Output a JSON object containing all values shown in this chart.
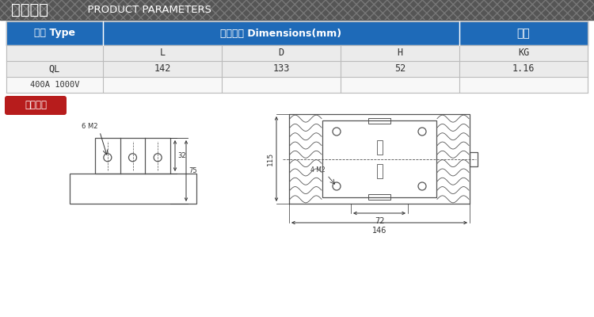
{
  "title_zh": "产品参数",
  "title_en": "  PRODUCT PARAMETERS",
  "header_bg": "#555555",
  "header_text_color": "#ffffff",
  "table_header_bg": "#1e6ab8",
  "table_header_text": "#ffffff",
  "table_row_light": "#ebebeb",
  "table_row_white": "#f8f8f8",
  "table_border": "#bbbbbb",
  "col_headers": [
    "型号 Type",
    "外形尺寸 Dimensions(mm)",
    "重量"
  ],
  "sub_headers": [
    "",
    "L",
    "D",
    "H",
    "KG"
  ],
  "row_line1": [
    "QL",
    "142",
    "133",
    "52",
    "1.16"
  ],
  "row_line2": "400A 1000V",
  "section_label": "外形尺寸",
  "section_label_bg": "#b71c1c",
  "section_label_text": "#ffffff",
  "bg_color": "#ffffff",
  "draw_color": "#555555",
  "dim_color": "#333333"
}
